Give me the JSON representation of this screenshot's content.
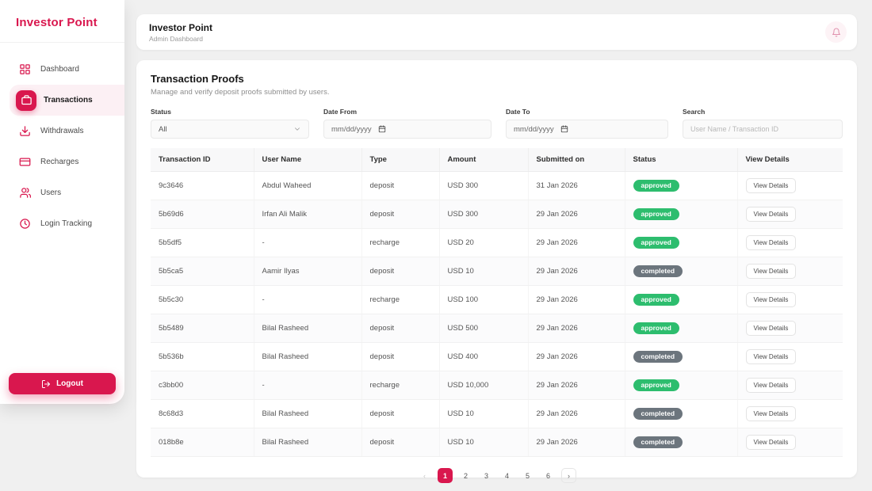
{
  "colors": {
    "accent": "#d9174e",
    "status_approved": "#2dbd6e",
    "status_completed": "#6c757d"
  },
  "sidebar": {
    "logo": "Investor Point",
    "items": [
      {
        "id": "dashboard",
        "label": "Dashboard",
        "icon": "grid",
        "active": false
      },
      {
        "id": "transactions",
        "label": "Transactions",
        "icon": "briefcase",
        "active": true
      },
      {
        "id": "withdrawals",
        "label": "Withdrawals",
        "icon": "download",
        "active": false
      },
      {
        "id": "recharges",
        "label": "Recharges",
        "icon": "card",
        "active": false
      },
      {
        "id": "users",
        "label": "Users",
        "icon": "users",
        "active": false
      },
      {
        "id": "login-tracking",
        "label": "Login Tracking",
        "icon": "clock",
        "active": false
      }
    ],
    "logout_label": "Logout"
  },
  "header": {
    "title": "Investor Point",
    "subtitle": "Admin Dashboard"
  },
  "main": {
    "title": "Transaction Proofs",
    "subtitle": "Manage and verify deposit proofs submitted by users.",
    "filters": {
      "status_label": "Status",
      "status_value": "All",
      "date_from_label": "Date From",
      "date_from_placeholder": "mm/dd/yyyy",
      "date_to_label": "Date To",
      "date_to_placeholder": "mm/dd/yyyy",
      "search_label": "Search",
      "search_placeholder": "User Name / Transaction ID"
    },
    "table": {
      "columns": [
        "Transaction ID",
        "User Name",
        "Type",
        "Amount",
        "Submitted on",
        "Status",
        "View Details"
      ],
      "view_details_label": "View Details",
      "rows": [
        {
          "id": "9c3646",
          "user": "Abdul Waheed",
          "type": "deposit",
          "amount": "USD 300",
          "submitted": "31 Jan 2026",
          "status": "approved"
        },
        {
          "id": "5b69d6",
          "user": "Irfan Ali Malik",
          "type": "deposit",
          "amount": "USD 300",
          "submitted": "29 Jan 2026",
          "status": "approved"
        },
        {
          "id": "5b5df5",
          "user": "-",
          "type": "recharge",
          "amount": "USD 20",
          "submitted": "29 Jan 2026",
          "status": "approved"
        },
        {
          "id": "5b5ca5",
          "user": "Aamir Ilyas",
          "type": "deposit",
          "amount": "USD 10",
          "submitted": "29 Jan 2026",
          "status": "completed"
        },
        {
          "id": "5b5c30",
          "user": "-",
          "type": "recharge",
          "amount": "USD 100",
          "submitted": "29 Jan 2026",
          "status": "approved"
        },
        {
          "id": "5b5489",
          "user": "Bilal Rasheed",
          "type": "deposit",
          "amount": "USD 500",
          "submitted": "29 Jan 2026",
          "status": "approved"
        },
        {
          "id": "5b536b",
          "user": "Bilal Rasheed",
          "type": "deposit",
          "amount": "USD 400",
          "submitted": "29 Jan 2026",
          "status": "completed"
        },
        {
          "id": "c3bb00",
          "user": "-",
          "type": "recharge",
          "amount": "USD 10,000",
          "submitted": "29 Jan 2026",
          "status": "approved"
        },
        {
          "id": "8c68d3",
          "user": "Bilal Rasheed",
          "type": "deposit",
          "amount": "USD 10",
          "submitted": "29 Jan 2026",
          "status": "completed"
        },
        {
          "id": "018b8e",
          "user": "Bilal Rasheed",
          "type": "deposit",
          "amount": "USD 10",
          "submitted": "29 Jan 2026",
          "status": "completed"
        }
      ]
    },
    "pagination": {
      "prev": "‹",
      "next": "›",
      "pages": [
        "1",
        "2",
        "3",
        "4",
        "5",
        "6"
      ],
      "active": "1"
    }
  }
}
